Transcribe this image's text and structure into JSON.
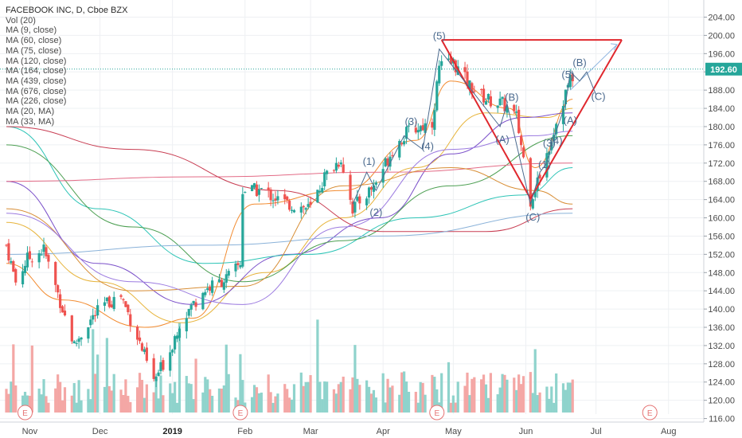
{
  "legend": {
    "symbol": "FACEBOOK INC, D, Cboe BZX",
    "indicators": [
      "Vol (20)",
      "MA (9, close)",
      "MA (60, close)",
      "MA (75, close)",
      "MA (120, close)",
      "MA (164, close)",
      "MA (439, close)",
      "MA (676, close)",
      "MA (226, close)",
      "MA (20, MA)",
      "MA (33, MA)"
    ]
  },
  "price_label": "192.60",
  "chart_data": {
    "type": "candlestick",
    "title": "FACEBOOK INC, D, Cboe BZX",
    "x_tick_labels": [
      "Nov",
      "Dec",
      "2019",
      "Feb",
      "Mar",
      "Apr",
      "May",
      "Jun",
      "Jul",
      "Aug"
    ],
    "y_tick_labels": [
      "204.00",
      "200.00",
      "196.00",
      "192.00",
      "188.00",
      "184.00",
      "180.00",
      "176.00",
      "172.00",
      "168.00",
      "164.00",
      "160.00",
      "156.00",
      "152.00",
      "148.00",
      "144.00",
      "140.00",
      "136.00",
      "132.00",
      "128.00",
      "124.00",
      "120.00",
      "116.00"
    ],
    "ylim": [
      115,
      205
    ],
    "current_price": 192.6,
    "colors": {
      "up": "#26a69a",
      "down": "#ef5350",
      "up_volume": "#8fd3cc",
      "down_volume": "#f4a7a5",
      "pattern": "#e0282e",
      "wave": "#4b6a8e",
      "price_line": "#26a69a"
    },
    "price_path": [
      {
        "date": "2018-10-22",
        "price": 154
      },
      {
        "date": "2018-10-26",
        "price": 146
      },
      {
        "date": "2018-10-31",
        "price": 151
      },
      {
        "date": "2018-11-07",
        "price": 153
      },
      {
        "date": "2018-11-12",
        "price": 145
      },
      {
        "date": "2018-11-20",
        "price": 132
      },
      {
        "date": "2018-11-26",
        "price": 137
      },
      {
        "date": "2018-12-03",
        "price": 141
      },
      {
        "date": "2018-12-10",
        "price": 143
      },
      {
        "date": "2018-12-17",
        "price": 134
      },
      {
        "date": "2018-12-24",
        "price": 124
      },
      {
        "date": "2018-12-31",
        "price": 131
      },
      {
        "date": "2019-01-04",
        "price": 137
      },
      {
        "date": "2019-01-14",
        "price": 144
      },
      {
        "date": "2019-01-25",
        "price": 147
      },
      {
        "date": "2019-01-30",
        "price": 150
      },
      {
        "date": "2019-01-31",
        "price": 166
      },
      {
        "date": "2019-02-08",
        "price": 166
      },
      {
        "date": "2019-02-19",
        "price": 163
      },
      {
        "date": "2019-03-01",
        "price": 162
      },
      {
        "date": "2019-03-07",
        "price": 169
      },
      {
        "date": "2019-03-14",
        "price": 173
      },
      {
        "date": "2019-03-19",
        "price": 162
      },
      {
        "date": "2019-03-28",
        "price": 167
      },
      {
        "date": "2019-04-05",
        "price": 175
      },
      {
        "date": "2019-04-12",
        "price": 179
      },
      {
        "date": "2019-04-22",
        "price": 181
      },
      {
        "date": "2019-04-25",
        "price": 193
      },
      {
        "date": "2019-05-01",
        "price": 194
      },
      {
        "date": "2019-05-08",
        "price": 189
      },
      {
        "date": "2019-05-15",
        "price": 186
      },
      {
        "date": "2019-05-22",
        "price": 185
      },
      {
        "date": "2019-05-28",
        "price": 182
      },
      {
        "date": "2019-06-03",
        "price": 164
      },
      {
        "date": "2019-06-06",
        "price": 168
      },
      {
        "date": "2019-06-10",
        "price": 174
      },
      {
        "date": "2019-06-14",
        "price": 181
      },
      {
        "date": "2019-06-19",
        "price": 189
      },
      {
        "date": "2019-06-21",
        "price": 191
      }
    ],
    "moving_averages": [
      {
        "name": "MA (9, close)",
        "color": "#f28b30",
        "points": [
          [
            "2018-10-22",
            150
          ],
          [
            "2018-11-15",
            142
          ],
          [
            "2018-12-20",
            136
          ],
          [
            "2019-01-10",
            138
          ],
          [
            "2019-02-05",
            163
          ],
          [
            "2019-03-15",
            166
          ],
          [
            "2019-04-15",
            177
          ],
          [
            "2019-04-30",
            190
          ],
          [
            "2019-05-25",
            184
          ],
          [
            "2019-06-05",
            171
          ],
          [
            "2019-06-21",
            186
          ]
        ]
      },
      {
        "name": "MA (60, close)",
        "color": "#e7b43c",
        "points": [
          [
            "2018-10-22",
            159
          ],
          [
            "2018-11-30",
            146
          ],
          [
            "2019-01-05",
            137
          ],
          [
            "2019-02-10",
            148
          ],
          [
            "2019-03-15",
            160
          ],
          [
            "2019-04-15",
            171
          ],
          [
            "2019-05-15",
            183
          ],
          [
            "2019-06-10",
            182
          ],
          [
            "2019-06-21",
            184
          ]
        ]
      },
      {
        "name": "MA (75, close)",
        "color": "#7a4fc9",
        "points": [
          [
            "2018-10-22",
            168
          ],
          [
            "2018-11-30",
            150
          ],
          [
            "2019-01-10",
            141
          ],
          [
            "2019-02-20",
            152
          ],
          [
            "2019-03-31",
            160
          ],
          [
            "2019-04-30",
            174
          ],
          [
            "2019-05-31",
            182
          ],
          [
            "2019-06-21",
            183
          ]
        ]
      },
      {
        "name": "MA (120, close)",
        "color": "#2cc4b6",
        "points": [
          [
            "2018-10-22",
            180
          ],
          [
            "2018-11-30",
            162
          ],
          [
            "2019-01-15",
            150
          ],
          [
            "2019-02-28",
            152
          ],
          [
            "2019-04-15",
            160
          ],
          [
            "2019-05-31",
            165
          ],
          [
            "2019-06-21",
            171
          ]
        ]
      },
      {
        "name": "MA (226, close)",
        "color": "#4c9f52",
        "points": [
          [
            "2018-10-22",
            176
          ],
          [
            "2018-12-15",
            158
          ],
          [
            "2019-01-31",
            146
          ],
          [
            "2019-03-15",
            155
          ],
          [
            "2019-04-30",
            167
          ],
          [
            "2019-06-21",
            178
          ]
        ]
      },
      {
        "name": "MA (439, close)",
        "color": "#e36b86",
        "points": [
          [
            "2018-10-22",
            168
          ],
          [
            "2019-01-15",
            169
          ],
          [
            "2019-04-01",
            170
          ],
          [
            "2019-06-21",
            172
          ]
        ]
      },
      {
        "name": "MA (164, close)",
        "color": "#c83d52",
        "points": [
          [
            "2018-10-22",
            180
          ],
          [
            "2018-12-15",
            175
          ],
          [
            "2019-02-15",
            166
          ],
          [
            "2019-04-01",
            157
          ],
          [
            "2019-05-15",
            157
          ],
          [
            "2019-06-21",
            162
          ]
        ]
      },
      {
        "name": "MA (676, close)",
        "color": "#8ab2d9",
        "points": [
          [
            "2018-10-22",
            152
          ],
          [
            "2019-01-15",
            154
          ],
          [
            "2019-04-01",
            156
          ],
          [
            "2019-06-21",
            161
          ]
        ]
      },
      {
        "name": "MA (20, MA)",
        "color": "#d88e36",
        "points": [
          [
            "2018-10-22",
            162
          ],
          [
            "2018-12-15",
            144
          ],
          [
            "2019-01-31",
            145
          ],
          [
            "2019-03-15",
            167
          ],
          [
            "2019-04-30",
            171
          ],
          [
            "2019-06-05",
            166
          ],
          [
            "2019-06-21",
            163
          ]
        ]
      },
      {
        "name": "MA (33, MA)",
        "color": "#9c7be0",
        "points": [
          [
            "2018-10-22",
            161
          ],
          [
            "2018-12-15",
            146
          ],
          [
            "2019-01-31",
            141
          ],
          [
            "2019-03-15",
            158
          ],
          [
            "2019-04-30",
            175
          ],
          [
            "2019-06-05",
            178
          ],
          [
            "2019-06-21",
            179
          ]
        ]
      }
    ],
    "pattern_lines": [
      [
        [
          "2019-04-26",
          199.0
        ],
        [
          "2019-07-12",
          199.0
        ]
      ],
      [
        [
          "2019-04-26",
          199.0
        ],
        [
          "2019-06-03",
          164.2
        ]
      ],
      [
        [
          "2019-06-03",
          164.2
        ],
        [
          "2019-07-12",
          199.0
        ]
      ],
      [
        [
          "2019-06-20",
          188.0
        ],
        [
          "2019-07-10",
          198.0
        ]
      ]
    ],
    "wave_lines": [
      [
        [
          "2019-03-19",
          163
        ],
        [
          "2019-03-25",
          170
        ],
        [
          "2019-03-29",
          166
        ],
        [
          "2019-04-10",
          178
        ],
        [
          "2019-04-18",
          175
        ],
        [
          "2019-04-25",
          197
        ],
        [
          "2019-05-21",
          180
        ],
        [
          "2019-05-24",
          185
        ],
        [
          "2019-06-03",
          163
        ],
        [
          "2019-06-07",
          170
        ],
        [
          "2019-06-10",
          172
        ],
        [
          "2019-06-12",
          176
        ],
        [
          "2019-06-18",
          185
        ],
        [
          "2019-06-20",
          192
        ],
        [
          "2019-06-24",
          190
        ],
        [
          "2019-06-27",
          192
        ],
        [
          "2019-07-01",
          187
        ]
      ]
    ],
    "wave_labels": [
      {
        "text": "(1)",
        "date": "2019-03-26",
        "price": 172.5
      },
      {
        "text": "(2)",
        "date": "2019-03-29",
        "price": 161.3
      },
      {
        "text": "(3)",
        "date": "2019-04-13",
        "price": 181.2
      },
      {
        "text": "(4)",
        "date": "2019-04-20",
        "price": 175.8
      },
      {
        "text": "(5)",
        "date": "2019-04-25",
        "price": 200.0
      },
      {
        "text": "(A)",
        "date": "2019-05-22",
        "price": 177.3
      },
      {
        "text": "(B)",
        "date": "2019-05-26",
        "price": 186.5
      },
      {
        "text": "(C)",
        "date": "2019-06-04",
        "price": 160.3
      },
      {
        "text": "(1)",
        "date": "2019-06-09",
        "price": 171.8
      },
      {
        "text": "(3)",
        "date": "2019-06-11",
        "price": 176.5
      },
      {
        "text": "(4)",
        "date": "2019-06-14",
        "price": 177.0
      },
      {
        "text": "(5)",
        "date": "2019-06-19",
        "price": 191.5
      },
      {
        "text": "(A)",
        "date": "2019-06-20",
        "price": 181.5
      },
      {
        "text": "(B)",
        "date": "2019-06-24",
        "price": 194.1
      },
      {
        "text": "(C)",
        "date": "2019-07-02",
        "price": 186.7
      }
    ],
    "earnings_markers": [
      "2018-10-30",
      "2019-01-30",
      "2019-04-24",
      "2019-07-24"
    ],
    "earnings_label": "E"
  }
}
